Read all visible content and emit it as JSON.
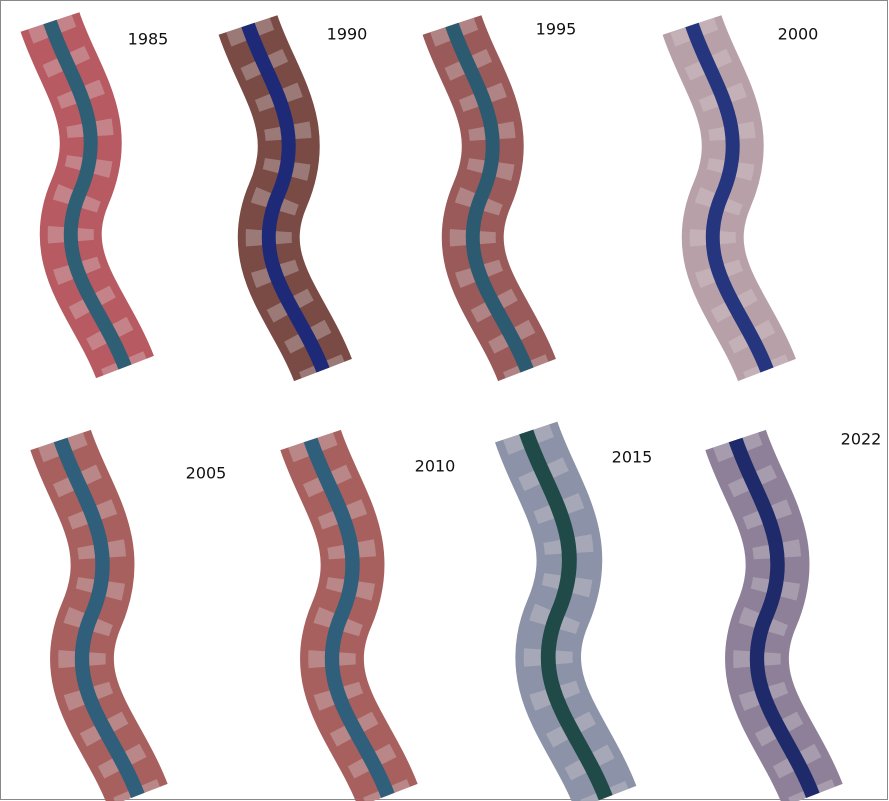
{
  "panels": [
    {
      "label": "1985"
    },
    {
      "label": "1990"
    },
    {
      "label": "1995"
    },
    {
      "label": "2000"
    },
    {
      "label": "2005"
    },
    {
      "label": "2010"
    },
    {
      "label": "2015"
    },
    {
      "label": "2022"
    }
  ]
}
